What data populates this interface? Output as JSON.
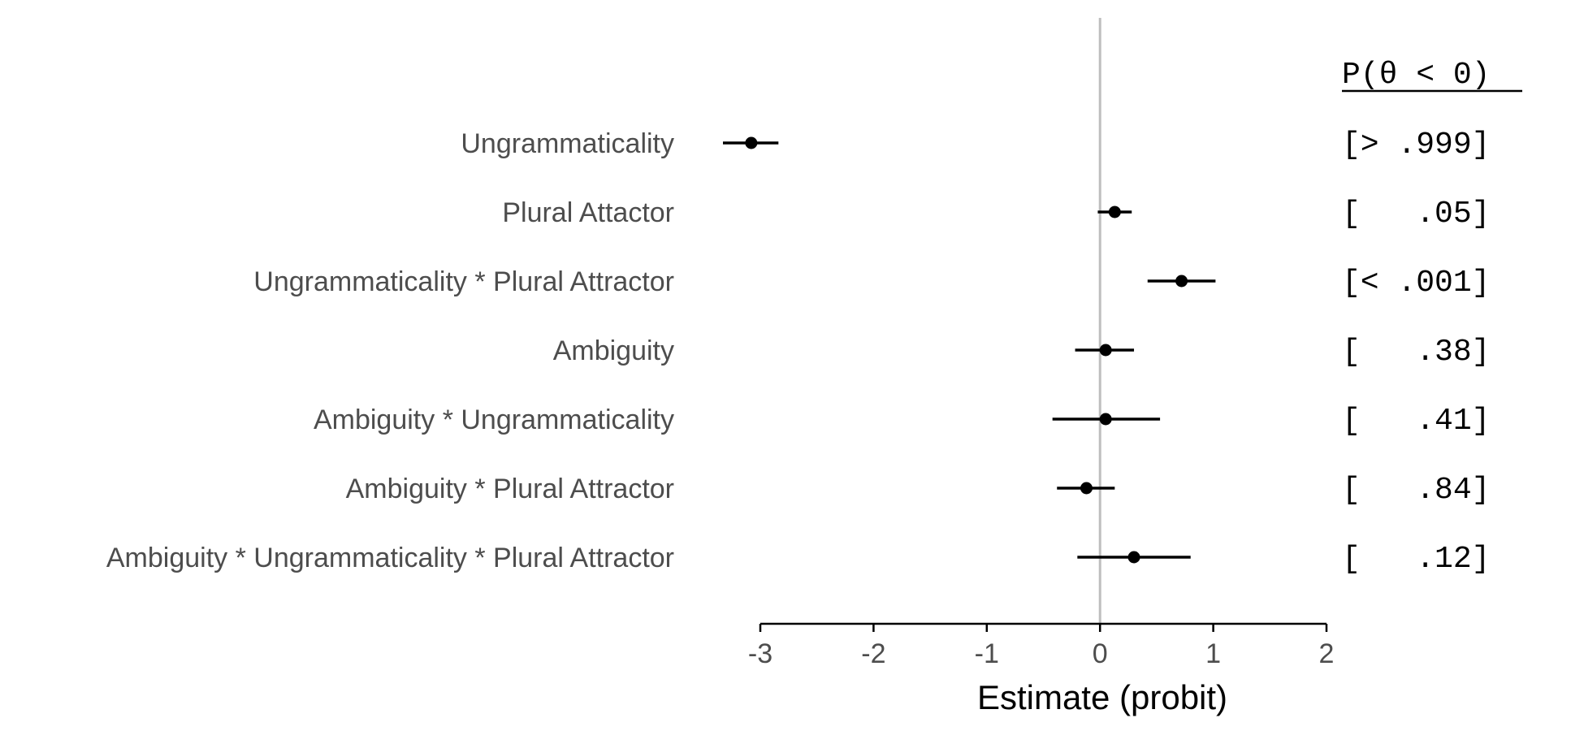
{
  "chart_data": {
    "type": "scatter",
    "subtype": "forest-plot",
    "xlabel": "Estimate (probit)",
    "xlim": [
      -3,
      2
    ],
    "xticks": [
      -3,
      -2,
      -1,
      0,
      1,
      2
    ],
    "reference_line": 0,
    "reference_line_color": "#bebebe",
    "point_color": "#000000",
    "prob_header": "P(θ < 0)",
    "rows": [
      {
        "label": "Ungrammaticality",
        "estimate": -3.08,
        "lower": -3.33,
        "upper": -2.84,
        "prob": "[> .999]"
      },
      {
        "label": "Plural Attactor",
        "estimate": 0.13,
        "lower": -0.02,
        "upper": 0.28,
        "prob": "[   .05]"
      },
      {
        "label": "Ungrammaticality * Plural Attractor",
        "estimate": 0.72,
        "lower": 0.42,
        "upper": 1.02,
        "prob": "[< .001]"
      },
      {
        "label": "Ambiguity",
        "estimate": 0.05,
        "lower": -0.22,
        "upper": 0.3,
        "prob": "[   .38]"
      },
      {
        "label": "Ambiguity * Ungrammaticality",
        "estimate": 0.05,
        "lower": -0.42,
        "upper": 0.53,
        "prob": "[   .41]"
      },
      {
        "label": "Ambiguity * Plural Attractor",
        "estimate": -0.12,
        "lower": -0.38,
        "upper": 0.13,
        "prob": "[   .84]"
      },
      {
        "label": "Ambiguity * Ungrammaticality * Plural Attractor",
        "estimate": 0.3,
        "lower": -0.2,
        "upper": 0.8,
        "prob": "[   .12]"
      }
    ]
  }
}
